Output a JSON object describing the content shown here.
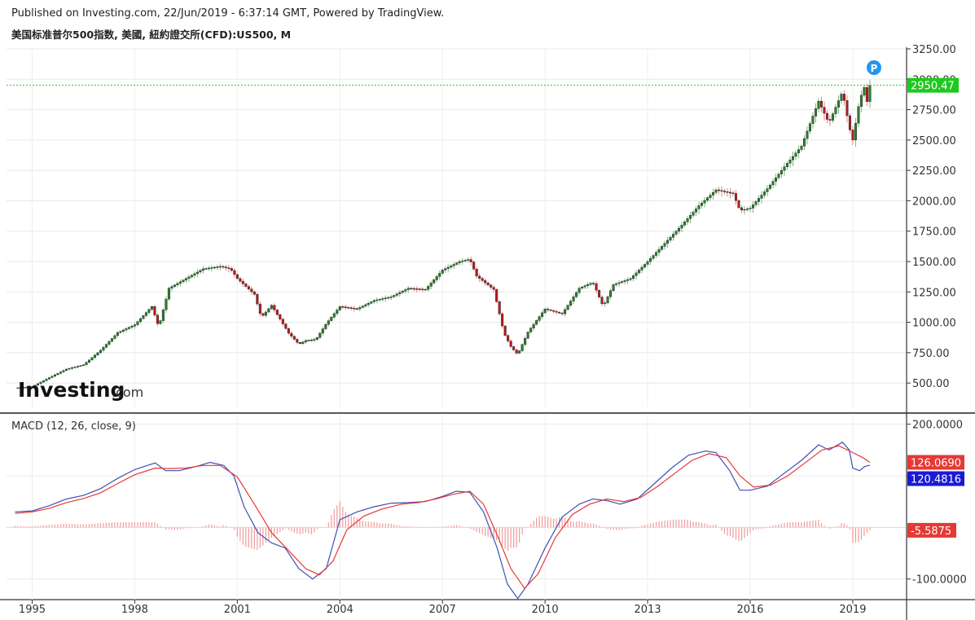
{
  "header": {
    "published": "Published on Investing.com, 22/Jun/2019 - 6:37:14 GMT, Powered by TradingView.",
    "symbol": "美国标准普尔500指数, 美國, 紐約證交所(CFD):US500, M"
  },
  "logo": {
    "brand": "Investing",
    "suffix": ".com"
  },
  "badge": "P",
  "macd_label": "MACD (12, 26, close, 9)",
  "colors": {
    "up": "#2e7d32",
    "down": "#b71c1c",
    "macd": "#3f51b5",
    "signal": "#e53935",
    "hist": "#ef9a9a",
    "price_tag": "#1ec91e"
  },
  "chart_data": [
    {
      "type": "candlestick",
      "interval": "monthly",
      "ylim": [
        300,
        3250
      ],
      "y_ticks": [
        "3250.00",
        "3000.00",
        "2750.00",
        "2500.00",
        "2250.00",
        "2000.00",
        "1750.00",
        "1500.00",
        "1250.00",
        "1000.00",
        "750.00",
        "500.00"
      ],
      "x_ticks": [
        "1995",
        "1998",
        "2001",
        "2004",
        "2007",
        "2010",
        "2013",
        "2016",
        "2019"
      ],
      "last_price": 2950.47,
      "last_price_label": "2950.47",
      "close_points": [
        [
          1994.5,
          460
        ],
        [
          1995.0,
          470
        ],
        [
          1995.5,
          545
        ],
        [
          1996.0,
          615
        ],
        [
          1996.5,
          650
        ],
        [
          1997.0,
          770
        ],
        [
          1997.5,
          915
        ],
        [
          1998.0,
          980
        ],
        [
          1998.5,
          1130
        ],
        [
          1998.7,
          960
        ],
        [
          1999.0,
          1280
        ],
        [
          1999.5,
          1360
        ],
        [
          2000.0,
          1440
        ],
        [
          2000.5,
          1460
        ],
        [
          2000.8,
          1440
        ],
        [
          2001.0,
          1360
        ],
        [
          2001.5,
          1230
        ],
        [
          2001.7,
          1040
        ],
        [
          2002.0,
          1140
        ],
        [
          2002.5,
          910
        ],
        [
          2002.8,
          820
        ],
        [
          2003.0,
          850
        ],
        [
          2003.3,
          860
        ],
        [
          2003.6,
          990
        ],
        [
          2004.0,
          1130
        ],
        [
          2004.5,
          1110
        ],
        [
          2005.0,
          1180
        ],
        [
          2005.5,
          1210
        ],
        [
          2006.0,
          1280
        ],
        [
          2006.5,
          1270
        ],
        [
          2007.0,
          1430
        ],
        [
          2007.5,
          1500
        ],
        [
          2007.8,
          1520
        ],
        [
          2008.0,
          1380
        ],
        [
          2008.5,
          1270
        ],
        [
          2008.8,
          910
        ],
        [
          2009.0,
          800
        ],
        [
          2009.2,
          735
        ],
        [
          2009.5,
          920
        ],
        [
          2010.0,
          1110
        ],
        [
          2010.5,
          1070
        ],
        [
          2011.0,
          1280
        ],
        [
          2011.4,
          1330
        ],
        [
          2011.7,
          1130
        ],
        [
          2012.0,
          1310
        ],
        [
          2012.5,
          1360
        ],
        [
          2013.0,
          1500
        ],
        [
          2013.5,
          1650
        ],
        [
          2014.0,
          1800
        ],
        [
          2014.5,
          1960
        ],
        [
          2015.0,
          2090
        ],
        [
          2015.5,
          2060
        ],
        [
          2015.7,
          1920
        ],
        [
          2016.0,
          1940
        ],
        [
          2016.5,
          2100
        ],
        [
          2017.0,
          2280
        ],
        [
          2017.5,
          2450
        ],
        [
          2018.0,
          2820
        ],
        [
          2018.3,
          2640
        ],
        [
          2018.7,
          2900
        ],
        [
          2018.9,
          2600
        ],
        [
          2019.0,
          2500
        ],
        [
          2019.2,
          2830
        ],
        [
          2019.35,
          2945
        ],
        [
          2019.45,
          2752
        ],
        [
          2019.5,
          2950
        ]
      ]
    },
    {
      "type": "macd",
      "params": "12, 26, close, 9",
      "ylim": [
        -140,
        220
      ],
      "y_ticks": [
        "200.0000",
        "100.0000",
        "-100.0000"
      ],
      "macd_label": "120.4816",
      "signal_label": "126.0690",
      "hist_label": "-5.5875",
      "macd_value": 120.4816,
      "signal_value": 126.069,
      "hist_value": -5.5875,
      "macd_points": [
        [
          1994.5,
          30
        ],
        [
          1995.0,
          32
        ],
        [
          1995.5,
          42
        ],
        [
          1996.0,
          55
        ],
        [
          1996.5,
          62
        ],
        [
          1997.0,
          75
        ],
        [
          1997.5,
          95
        ],
        [
          1998.0,
          112
        ],
        [
          1998.6,
          125
        ],
        [
          1998.9,
          110
        ],
        [
          1999.3,
          110
        ],
        [
          1999.8,
          118
        ],
        [
          2000.2,
          126
        ],
        [
          2000.6,
          120
        ],
        [
          2000.9,
          100
        ],
        [
          2001.2,
          40
        ],
        [
          2001.6,
          -10
        ],
        [
          2002.0,
          -30
        ],
        [
          2002.4,
          -40
        ],
        [
          2002.8,
          -80
        ],
        [
          2003.2,
          -100
        ],
        [
          2003.6,
          -80
        ],
        [
          2004.0,
          15
        ],
        [
          2004.5,
          30
        ],
        [
          2005.0,
          40
        ],
        [
          2005.5,
          47
        ],
        [
          2006.0,
          48
        ],
        [
          2006.5,
          50
        ],
        [
          2007.0,
          60
        ],
        [
          2007.4,
          70
        ],
        [
          2007.8,
          68
        ],
        [
          2008.2,
          30
        ],
        [
          2008.6,
          -40
        ],
        [
          2008.9,
          -110
        ],
        [
          2009.2,
          -138
        ],
        [
          2009.5,
          -110
        ],
        [
          2010.0,
          -40
        ],
        [
          2010.5,
          20
        ],
        [
          2011.0,
          45
        ],
        [
          2011.4,
          55
        ],
        [
          2011.8,
          52
        ],
        [
          2012.2,
          45
        ],
        [
          2012.7,
          55
        ],
        [
          2013.2,
          85
        ],
        [
          2013.7,
          115
        ],
        [
          2014.2,
          140
        ],
        [
          2014.7,
          148
        ],
        [
          2015.0,
          145
        ],
        [
          2015.4,
          110
        ],
        [
          2015.7,
          72
        ],
        [
          2016.0,
          72
        ],
        [
          2016.5,
          80
        ],
        [
          2017.0,
          105
        ],
        [
          2017.5,
          130
        ],
        [
          2018.0,
          160
        ],
        [
          2018.3,
          150
        ],
        [
          2018.7,
          165
        ],
        [
          2018.9,
          150
        ],
        [
          2019.0,
          115
        ],
        [
          2019.2,
          110
        ],
        [
          2019.35,
          118
        ],
        [
          2019.5,
          120.48
        ]
      ],
      "signal_points": [
        [
          1994.5,
          27
        ],
        [
          1995.0,
          30
        ],
        [
          1995.5,
          37
        ],
        [
          1996.0,
          48
        ],
        [
          1996.5,
          56
        ],
        [
          1997.0,
          67
        ],
        [
          1997.5,
          85
        ],
        [
          1998.0,
          102
        ],
        [
          1998.6,
          115
        ],
        [
          1999.0,
          114
        ],
        [
          1999.5,
          115
        ],
        [
          2000.0,
          120
        ],
        [
          2000.5,
          120
        ],
        [
          2001.0,
          98
        ],
        [
          2001.5,
          45
        ],
        [
          2002.0,
          -10
        ],
        [
          2002.5,
          -45
        ],
        [
          2003.0,
          -80
        ],
        [
          2003.4,
          -92
        ],
        [
          2003.8,
          -65
        ],
        [
          2004.2,
          -5
        ],
        [
          2004.7,
          22
        ],
        [
          2005.2,
          35
        ],
        [
          2005.8,
          45
        ],
        [
          2006.3,
          48
        ],
        [
          2006.8,
          55
        ],
        [
          2007.3,
          64
        ],
        [
          2007.8,
          70
        ],
        [
          2008.2,
          45
        ],
        [
          2008.6,
          -15
        ],
        [
          2009.0,
          -80
        ],
        [
          2009.4,
          -118
        ],
        [
          2009.8,
          -90
        ],
        [
          2010.3,
          -20
        ],
        [
          2010.8,
          25
        ],
        [
          2011.3,
          45
        ],
        [
          2011.8,
          55
        ],
        [
          2012.3,
          50
        ],
        [
          2012.8,
          58
        ],
        [
          2013.3,
          80
        ],
        [
          2013.8,
          105
        ],
        [
          2014.3,
          130
        ],
        [
          2014.8,
          143
        ],
        [
          2015.3,
          135
        ],
        [
          2015.7,
          100
        ],
        [
          2016.1,
          78
        ],
        [
          2016.6,
          82
        ],
        [
          2017.1,
          100
        ],
        [
          2017.6,
          125
        ],
        [
          2018.1,
          150
        ],
        [
          2018.6,
          158
        ],
        [
          2019.0,
          145
        ],
        [
          2019.3,
          135
        ],
        [
          2019.5,
          126.07
        ]
      ]
    }
  ]
}
